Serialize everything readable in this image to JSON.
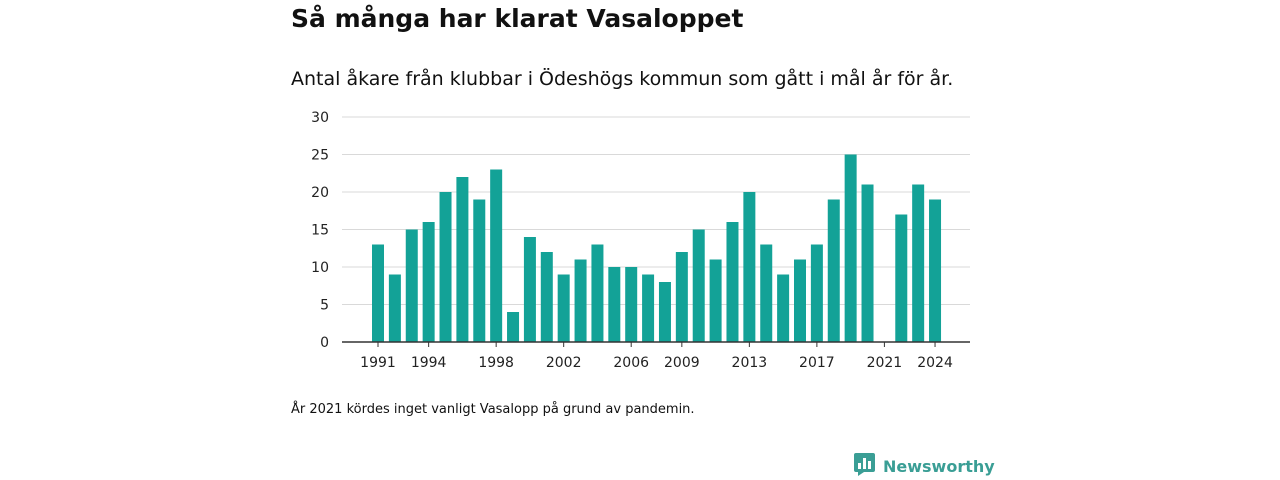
{
  "title": "Så många har klarat Vasaloppet",
  "subtitle": "Antal åkare från klubbar i Ödeshögs kommun som gått i mål år för år.",
  "footnote": "År 2021 kördes inget vanligt Vasalopp på grund av pandemin.",
  "brand": {
    "name": "Newsworthy",
    "logo_icon": "bar-chart-bubble-icon"
  },
  "colors": {
    "bar": "#13a297",
    "grid": "#d9d9d9",
    "axis": "#333333",
    "brand": "#3a9e95"
  },
  "chart_data": {
    "type": "bar",
    "title": "Så många har klarat Vasaloppet",
    "subtitle": "Antal åkare från klubbar i Ödeshögs kommun som gått i mål år för år.",
    "xlabel": "",
    "ylabel": "",
    "ylim": [
      0,
      30
    ],
    "yticks": [
      "0",
      "5",
      "10",
      "15",
      "20",
      "25",
      "30"
    ],
    "grid": true,
    "legend": "none",
    "categories": [
      1991,
      1992,
      1993,
      1994,
      1995,
      1996,
      1997,
      1998,
      1999,
      2000,
      2001,
      2002,
      2003,
      2004,
      2005,
      2006,
      2007,
      2008,
      2009,
      2010,
      2011,
      2012,
      2013,
      2014,
      2015,
      2016,
      2017,
      2018,
      2019,
      2020,
      2021,
      2022,
      2023,
      2024
    ],
    "values": [
      13,
      9,
      15,
      16,
      20,
      22,
      19,
      23,
      4,
      14,
      12,
      9,
      11,
      13,
      10,
      10,
      9,
      8,
      12,
      15,
      11,
      16,
      20,
      13,
      9,
      11,
      13,
      19,
      25,
      21,
      0,
      17,
      21,
      19
    ],
    "xticks": [
      "1991",
      "1994",
      "1998",
      "2002",
      "2006",
      "2009",
      "2013",
      "2017",
      "2021",
      "2024"
    ]
  }
}
